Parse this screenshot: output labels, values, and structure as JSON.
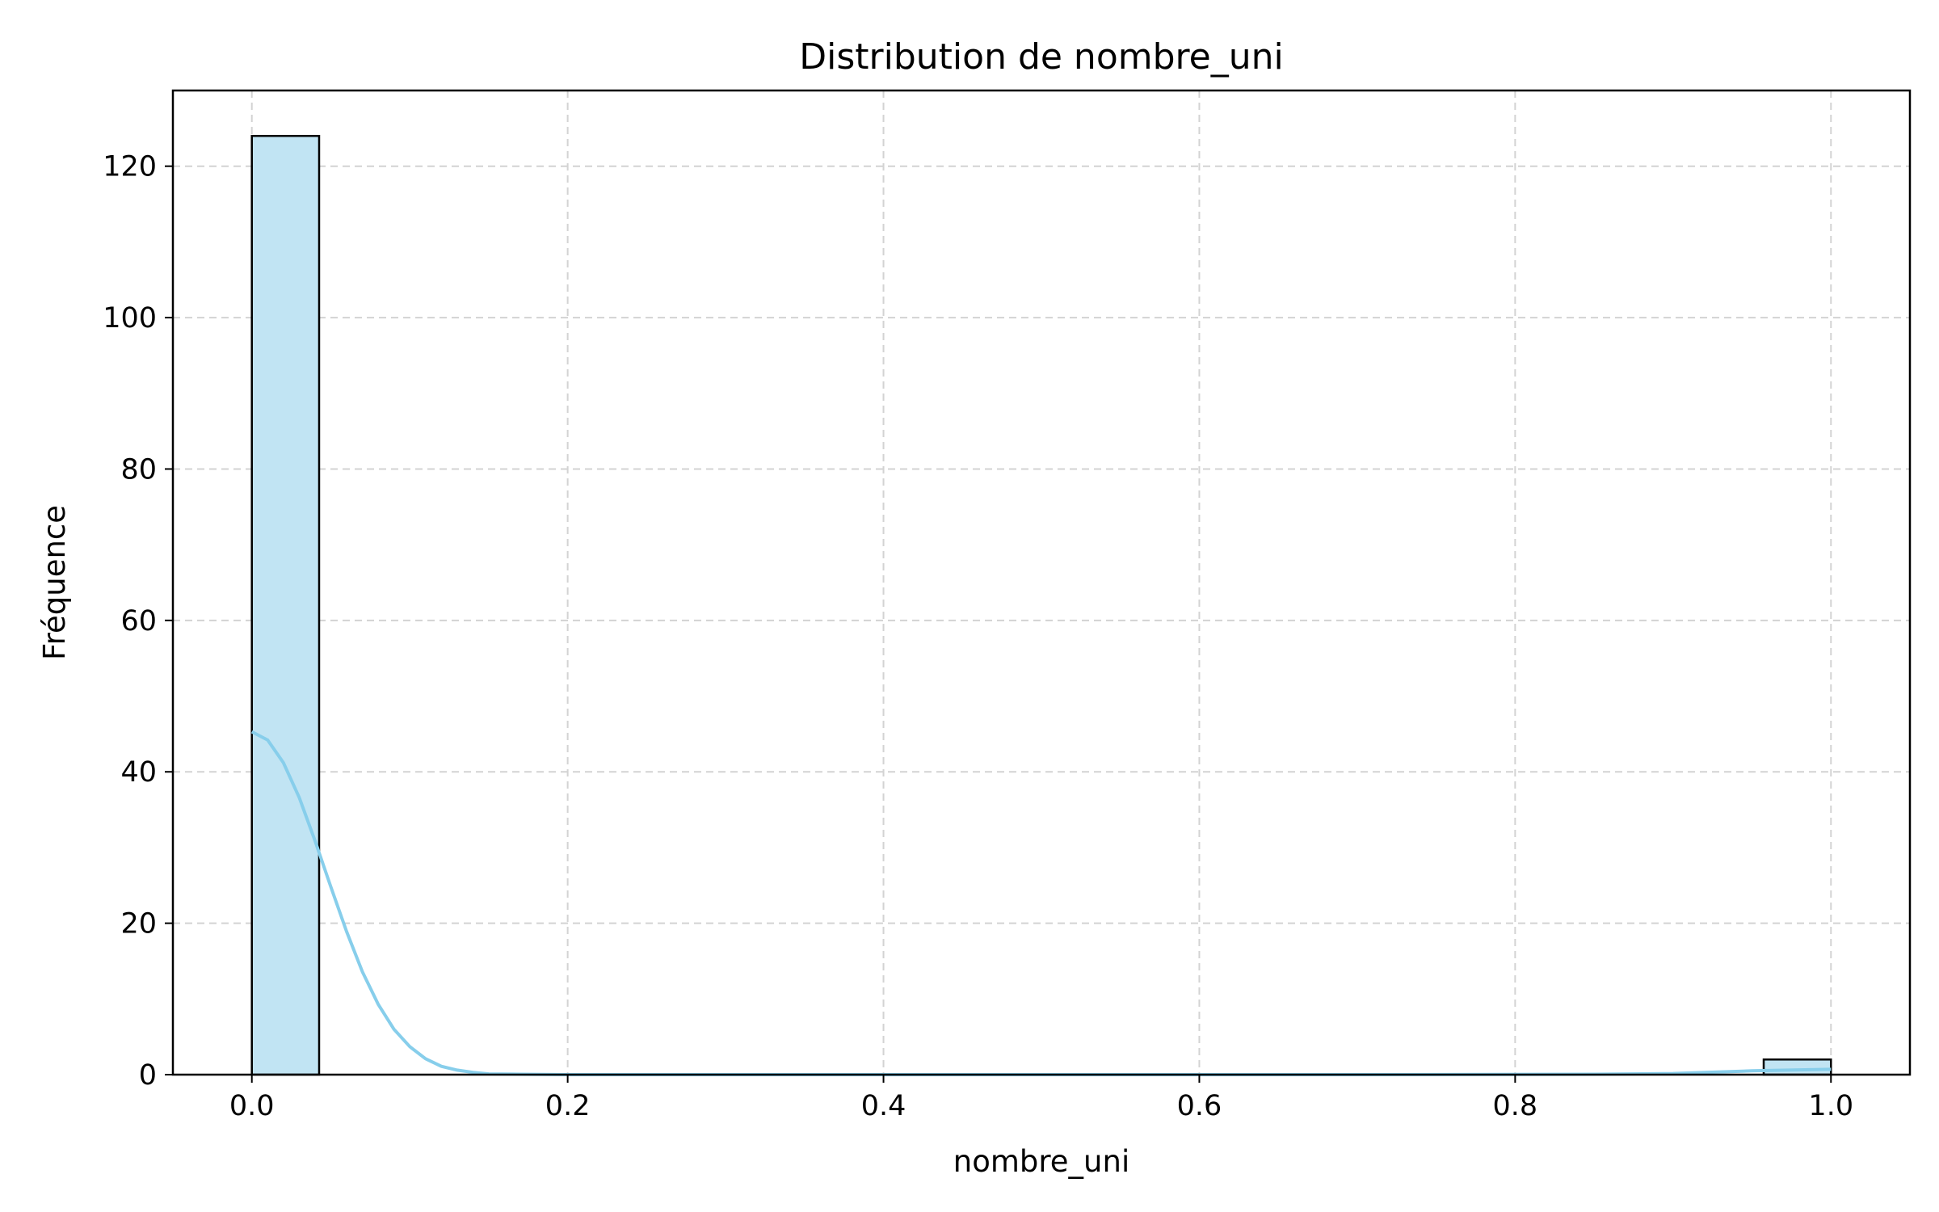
{
  "chart_data": {
    "type": "bar",
    "title": "Distribution de nombre_uni",
    "xlabel": "nombre_uni",
    "ylabel": "Fréquence",
    "xlim": [
      -0.05,
      1.05
    ],
    "ylim": [
      0,
      130
    ],
    "xticks": [
      0.0,
      0.2,
      0.4,
      0.6,
      0.8,
      1.0
    ],
    "xtick_labels": [
      "0.0",
      "0.2",
      "0.4",
      "0.6",
      "0.8",
      "1.0"
    ],
    "yticks": [
      0,
      20,
      40,
      60,
      80,
      100,
      120
    ],
    "ytick_labels": [
      "0",
      "20",
      "40",
      "60",
      "80",
      "100",
      "120"
    ],
    "grid": true,
    "bar_color": "#c1e4f3",
    "bar_edge_color": "#000000",
    "kde_color": "#87ceeb",
    "bins": [
      {
        "x0": 0.0,
        "x1": 0.0426,
        "count": 124
      },
      {
        "x0": 0.9574,
        "x1": 1.0,
        "count": 2
      }
    ],
    "kde": {
      "x": [
        0.0,
        0.01,
        0.02,
        0.03,
        0.04,
        0.05,
        0.06,
        0.07,
        0.08,
        0.09,
        0.1,
        0.11,
        0.12,
        0.13,
        0.14,
        0.15,
        0.17,
        0.2,
        0.3,
        0.5,
        0.7,
        0.85,
        0.9,
        0.95,
        1.0
      ],
      "y": [
        45.3,
        44.2,
        41.2,
        36.6,
        30.9,
        24.8,
        18.9,
        13.6,
        9.3,
        6.0,
        3.7,
        2.1,
        1.1,
        0.6,
        0.3,
        0.1,
        0.05,
        0.0,
        0.0,
        0.0,
        0.0,
        0.05,
        0.15,
        0.5,
        0.7
      ]
    }
  }
}
